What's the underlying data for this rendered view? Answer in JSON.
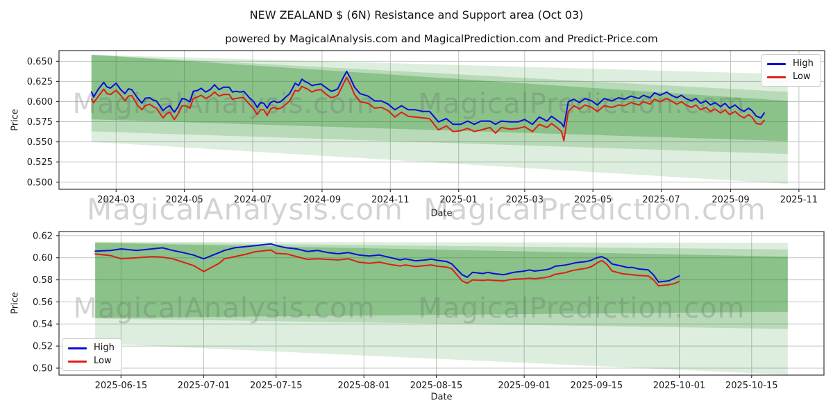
{
  "title": "NEW ZEALAND $ (6N) Resistance and Support area (Oct 03)",
  "subtitle": "powered by MagicalAnalysis.com and MagicalPrediction.com and Predict-Price.com",
  "watermarks": {
    "left": "MagicalAnalysis.com",
    "right": "MagicalPrediction.com"
  },
  "legend": {
    "high_label": "High",
    "low_label": "Low"
  },
  "colors": {
    "high": "#0d0dd6",
    "low": "#e01d14",
    "band": "#228B22",
    "grid": "#c2c2c2",
    "spine": "#333333",
    "tick_text": "#1a1a1a",
    "watermark_fill": "rgba(110,110,110,0.30)"
  },
  "chart_data": [
    {
      "type": "line",
      "ylabel": "Price",
      "xlabel": "Date",
      "grid": true,
      "legend_pos": "upper-right",
      "ylim": [
        0.4912,
        0.6632
      ],
      "x_domain": [
        "2024-01-10",
        "2025-11-24"
      ],
      "yticks": [
        {
          "v": 0.65,
          "label": "0.650"
        },
        {
          "v": 0.625,
          "label": "0.625"
        },
        {
          "v": 0.6,
          "label": "0.600"
        },
        {
          "v": 0.575,
          "label": "0.575"
        },
        {
          "v": 0.55,
          "label": "0.550"
        },
        {
          "v": 0.525,
          "label": "0.525"
        },
        {
          "v": 0.5,
          "label": "0.500"
        }
      ],
      "xticks": [
        {
          "d": "2024-03-01",
          "label": "2024-03"
        },
        {
          "d": "2024-05-01",
          "label": "2024-05"
        },
        {
          "d": "2024-07-01",
          "label": "2024-07"
        },
        {
          "d": "2024-09-01",
          "label": "2024-09"
        },
        {
          "d": "2024-11-01",
          "label": "2024-11"
        },
        {
          "d": "2025-01-01",
          "label": "2025-01"
        },
        {
          "d": "2025-03-01",
          "label": "2025-03"
        },
        {
          "d": "2025-05-01",
          "label": "2025-05"
        },
        {
          "d": "2025-07-01",
          "label": "2025-07"
        },
        {
          "d": "2025-09-01",
          "label": "2025-09"
        },
        {
          "d": "2025-11-01",
          "label": "2025-11"
        }
      ],
      "bands": [
        {
          "x": [
            "2024-02-08",
            "2025-10-22"
          ],
          "top": [
            0.658,
            0.634
          ],
          "bottom": [
            0.55,
            0.498
          ],
          "opacity": 0.15
        },
        {
          "x": [
            "2024-02-08",
            "2025-10-22"
          ],
          "top": [
            0.658,
            0.612
          ],
          "bottom": [
            0.563,
            0.535
          ],
          "opacity": 0.2
        },
        {
          "x": [
            "2024-02-08",
            "2025-10-22"
          ],
          "top": [
            0.658,
            0.601
          ],
          "bottom": [
            0.578,
            0.551
          ],
          "opacity": 0.3
        }
      ],
      "dates": [
        "2024-02-08",
        "2024-02-10",
        "2024-02-14",
        "2024-02-19",
        "2024-02-22",
        "2024-02-25",
        "2024-03-01",
        "2024-03-05",
        "2024-03-09",
        "2024-03-12",
        "2024-03-15",
        "2024-03-20",
        "2024-03-24",
        "2024-03-27",
        "2024-03-31",
        "2024-04-03",
        "2024-04-06",
        "2024-04-09",
        "2024-04-12",
        "2024-04-15",
        "2024-04-18",
        "2024-04-22",
        "2024-04-25",
        "2024-04-29",
        "2024-05-02",
        "2024-05-06",
        "2024-05-09",
        "2024-05-13",
        "2024-05-16",
        "2024-05-20",
        "2024-05-24",
        "2024-05-28",
        "2024-06-01",
        "2024-06-05",
        "2024-06-10",
        "2024-06-13",
        "2024-06-16",
        "2024-06-20",
        "2024-06-23",
        "2024-06-28",
        "2024-07-02",
        "2024-07-05",
        "2024-07-08",
        "2024-07-11",
        "2024-07-14",
        "2024-07-17",
        "2024-07-20",
        "2024-07-23",
        "2024-07-26",
        "2024-07-30",
        "2024-08-03",
        "2024-08-08",
        "2024-08-11",
        "2024-08-14",
        "2024-08-17",
        "2024-08-20",
        "2024-08-23",
        "2024-08-26",
        "2024-08-31",
        "2024-09-04",
        "2024-09-09",
        "2024-09-12",
        "2024-09-15",
        "2024-09-20",
        "2024-09-23",
        "2024-09-26",
        "2024-09-30",
        "2024-10-05",
        "2024-10-12",
        "2024-10-18",
        "2024-10-24",
        "2024-10-30",
        "2024-11-05",
        "2024-11-11",
        "2024-11-17",
        "2024-11-23",
        "2024-11-30",
        "2024-12-06",
        "2024-12-14",
        "2024-12-21",
        "2024-12-27",
        "2025-01-03",
        "2025-01-09",
        "2025-01-15",
        "2025-01-21",
        "2025-01-29",
        "2025-02-03",
        "2025-02-08",
        "2025-02-16",
        "2025-02-23",
        "2025-03-01",
        "2025-03-08",
        "2025-03-14",
        "2025-03-21",
        "2025-03-25",
        "2025-03-29",
        "2025-04-03",
        "2025-04-05",
        "2025-04-09",
        "2025-04-14",
        "2025-04-19",
        "2025-04-24",
        "2025-04-30",
        "2025-05-05",
        "2025-05-11",
        "2025-05-18",
        "2025-05-24",
        "2025-05-29",
        "2025-06-04",
        "2025-06-11",
        "2025-06-15",
        "2025-06-21",
        "2025-06-25",
        "2025-06-30",
        "2025-07-06",
        "2025-07-10",
        "2025-07-15",
        "2025-07-19",
        "2025-07-23",
        "2025-07-28",
        "2025-08-01",
        "2025-08-05",
        "2025-08-10",
        "2025-08-14",
        "2025-08-18",
        "2025-08-23",
        "2025-08-27",
        "2025-08-31",
        "2025-09-05",
        "2025-09-09",
        "2025-09-13",
        "2025-09-17",
        "2025-09-20",
        "2025-09-24",
        "2025-09-28",
        "2025-10-01"
      ],
      "series": [
        {
          "name": "High",
          "color_key": "high",
          "values": [
            0.612,
            0.6058,
            0.615,
            0.6238,
            0.618,
            0.6168,
            0.6228,
            0.615,
            0.6098,
            0.6158,
            0.6148,
            0.6048,
            0.598,
            0.604,
            0.6048,
            0.6018,
            0.6008,
            0.5948,
            0.5888,
            0.5928,
            0.5948,
            0.5868,
            0.5928,
            0.6038,
            0.6028,
            0.5998,
            0.6128,
            0.6138,
            0.6165,
            0.6118,
            0.6148,
            0.6208,
            0.6148,
            0.6178,
            0.6178,
            0.6118,
            0.6128,
            0.6118,
            0.6128,
            0.6048,
            0.5998,
            0.5928,
            0.5988,
            0.5978,
            0.5918,
            0.5988,
            0.6008,
            0.5988,
            0.5998,
            0.6048,
            0.6098,
            0.6228,
            0.6198,
            0.6278,
            0.6248,
            0.6228,
            0.6198,
            0.6208,
            0.6218,
            0.6178,
            0.6128,
            0.6138,
            0.6158,
            0.6298,
            0.6375,
            0.6298,
            0.6178,
            0.6098,
            0.6068,
            0.6008,
            0.6008,
            0.5968,
            0.5898,
            0.5948,
            0.5898,
            0.5898,
            0.5878,
            0.5878,
            0.5748,
            0.5788,
            0.5718,
            0.5718,
            0.5758,
            0.5718,
            0.5758,
            0.5758,
            0.5718,
            0.5758,
            0.5748,
            0.5748,
            0.5778,
            0.5718,
            0.5808,
            0.5758,
            0.5818,
            0.5778,
            0.5728,
            0.5685,
            0.5998,
            0.6028,
            0.5988,
            0.6038,
            0.6008,
            0.5958,
            0.6038,
            0.6008,
            0.6048,
            0.6028,
            0.6068,
            0.6038,
            0.6078,
            0.6048,
            0.6108,
            0.6078,
            0.6118,
            0.6078,
            0.6048,
            0.6078,
            0.6038,
            0.6008,
            0.6038,
            0.5978,
            0.6008,
            0.5958,
            0.5988,
            0.5938,
            0.5978,
            0.5918,
            0.5958,
            0.5908,
            0.5878,
            0.5918,
            0.5888,
            0.5818,
            0.5798,
            0.5858
          ]
        },
        {
          "name": "Low",
          "color_key": "low",
          "values": [
            0.603,
            0.5985,
            0.6062,
            0.6155,
            0.6098,
            0.6088,
            0.614,
            0.608,
            0.6008,
            0.6068,
            0.6075,
            0.5958,
            0.5898,
            0.5948,
            0.5968,
            0.5938,
            0.5918,
            0.5858,
            0.5798,
            0.5848,
            0.5868,
            0.5778,
            0.5838,
            0.5948,
            0.5948,
            0.5918,
            0.6038,
            0.6058,
            0.6078,
            0.6038,
            0.6068,
            0.6118,
            0.6068,
            0.6088,
            0.6088,
            0.6028,
            0.6038,
            0.6048,
            0.6048,
            0.5968,
            0.5908,
            0.5838,
            0.5898,
            0.5898,
            0.5828,
            0.5908,
            0.5928,
            0.5908,
            0.5918,
            0.5958,
            0.6008,
            0.6138,
            0.6128,
            0.6188,
            0.6168,
            0.6148,
            0.6118,
            0.6138,
            0.6148,
            0.6098,
            0.6048,
            0.6058,
            0.6078,
            0.6218,
            0.6298,
            0.6218,
            0.6088,
            0.5998,
            0.5978,
            0.5918,
            0.5928,
            0.5888,
            0.5808,
            0.5868,
            0.5818,
            0.5808,
            0.5798,
            0.5788,
            0.5648,
            0.5698,
            0.5628,
            0.5638,
            0.5668,
            0.5628,
            0.5648,
            0.5678,
            0.5608,
            0.5678,
            0.5658,
            0.5668,
            0.5688,
            0.5628,
            0.5718,
            0.5678,
            0.5728,
            0.5688,
            0.5628,
            0.5515,
            0.5878,
            0.5948,
            0.5908,
            0.5958,
            0.5928,
            0.5878,
            0.5948,
            0.5928,
            0.5958,
            0.5948,
            0.5988,
            0.5958,
            0.5998,
            0.5968,
            0.6028,
            0.5998,
            0.6038,
            0.6008,
            0.5968,
            0.5998,
            0.5958,
            0.5928,
            0.5958,
            0.5898,
            0.5928,
            0.5878,
            0.5908,
            0.5858,
            0.5898,
            0.5838,
            0.5878,
            0.5828,
            0.5798,
            0.5838,
            0.5808,
            0.5728,
            0.5718,
            0.5768
          ]
        }
      ]
    },
    {
      "type": "line",
      "ylabel": "Price",
      "xlabel": "Date",
      "grid": true,
      "legend_pos": "lower-left",
      "ylim": [
        0.4937,
        0.6237
      ],
      "x_domain": [
        "2025-06-03",
        "2025-10-29"
      ],
      "yticks": [
        {
          "v": 0.62,
          "label": "0.62"
        },
        {
          "v": 0.6,
          "label": "0.60"
        },
        {
          "v": 0.58,
          "label": "0.58"
        },
        {
          "v": 0.56,
          "label": "0.56"
        },
        {
          "v": 0.54,
          "label": "0.54"
        },
        {
          "v": 0.52,
          "label": "0.52"
        },
        {
          "v": 0.5,
          "label": "0.50"
        }
      ],
      "xticks": [
        {
          "d": "2025-06-15",
          "label": "2025-06-15"
        },
        {
          "d": "2025-07-01",
          "label": "2025-07-01"
        },
        {
          "d": "2025-07-15",
          "label": "2025-07-15"
        },
        {
          "d": "2025-08-01",
          "label": "2025-08-01"
        },
        {
          "d": "2025-08-15",
          "label": "2025-08-15"
        },
        {
          "d": "2025-09-01",
          "label": "2025-09-01"
        },
        {
          "d": "2025-09-15",
          "label": "2025-09-15"
        },
        {
          "d": "2025-10-01",
          "label": "2025-10-01"
        },
        {
          "d": "2025-10-15",
          "label": "2025-10-15"
        }
      ],
      "bands": [
        {
          "x": [
            "2025-06-10",
            "2025-10-22"
          ],
          "top": [
            0.6145,
            0.6135
          ],
          "bottom": [
            0.5225,
            0.494
          ],
          "opacity": 0.15
        },
        {
          "x": [
            "2025-06-10",
            "2025-10-22"
          ],
          "top": [
            0.614,
            0.6075
          ],
          "bottom": [
            0.545,
            0.5355
          ],
          "opacity": 0.2
        },
        {
          "x": [
            "2025-06-10",
            "2025-10-22"
          ],
          "top": [
            0.6135,
            0.601
          ],
          "bottom": [
            0.5455,
            0.551
          ],
          "opacity": 0.3
        }
      ],
      "dates": [
        "2025-06-10",
        "2025-06-13",
        "2025-06-15",
        "2025-06-18",
        "2025-06-21",
        "2025-06-23",
        "2025-06-25",
        "2025-06-27",
        "2025-06-29",
        "2025-07-01",
        "2025-07-04",
        "2025-07-05",
        "2025-07-07",
        "2025-07-09",
        "2025-07-11",
        "2025-07-14",
        "2025-07-15",
        "2025-07-17",
        "2025-07-19",
        "2025-07-21",
        "2025-07-23",
        "2025-07-25",
        "2025-07-27",
        "2025-07-29",
        "2025-07-31",
        "2025-08-02",
        "2025-08-04",
        "2025-08-06",
        "2025-08-08",
        "2025-08-09",
        "2025-08-11",
        "2025-08-13",
        "2025-08-14",
        "2025-08-15",
        "2025-08-17",
        "2025-08-18",
        "2025-08-20",
        "2025-08-21",
        "2025-08-22",
        "2025-08-24",
        "2025-08-25",
        "2025-08-26",
        "2025-08-28",
        "2025-08-29",
        "2025-08-30",
        "2025-09-01",
        "2025-09-02",
        "2025-09-03",
        "2025-09-05",
        "2025-09-06",
        "2025-09-07",
        "2025-09-09",
        "2025-09-10",
        "2025-09-11",
        "2025-09-13",
        "2025-09-14",
        "2025-09-15",
        "2025-09-16",
        "2025-09-17",
        "2025-09-18",
        "2025-09-20",
        "2025-09-21",
        "2025-09-22",
        "2025-09-23",
        "2025-09-25",
        "2025-09-26",
        "2025-09-27",
        "2025-09-29",
        "2025-09-30",
        "2025-10-01"
      ],
      "series": [
        {
          "name": "High",
          "color_key": "high",
          "values": [
            0.606,
            0.6066,
            0.608,
            0.6066,
            0.608,
            0.609,
            0.6066,
            0.6047,
            0.6025,
            0.599,
            0.6047,
            0.6066,
            0.609,
            0.61,
            0.611,
            0.6125,
            0.611,
            0.609,
            0.608,
            0.6057,
            0.6066,
            0.6047,
            0.6036,
            0.6047,
            0.6025,
            0.6015,
            0.6025,
            0.6003,
            0.598,
            0.599,
            0.5972,
            0.598,
            0.5988,
            0.5978,
            0.5966,
            0.5944,
            0.5846,
            0.5824,
            0.5868,
            0.5857,
            0.5868,
            0.5857,
            0.5846,
            0.5857,
            0.5868,
            0.5879,
            0.589,
            0.5879,
            0.589,
            0.59,
            0.5923,
            0.5934,
            0.5944,
            0.5955,
            0.5966,
            0.5977,
            0.5999,
            0.601,
            0.5988,
            0.5944,
            0.5923,
            0.5912,
            0.5912,
            0.59,
            0.589,
            0.5846,
            0.578,
            0.5791,
            0.5813,
            0.5835
          ]
        },
        {
          "name": "Low",
          "color_key": "low",
          "values": [
            0.6035,
            0.602,
            0.599,
            0.6,
            0.601,
            0.6005,
            0.599,
            0.596,
            0.593,
            0.5875,
            0.595,
            0.599,
            0.601,
            0.603,
            0.6055,
            0.607,
            0.604,
            0.6035,
            0.601,
            0.5985,
            0.599,
            0.5985,
            0.598,
            0.599,
            0.596,
            0.595,
            0.596,
            0.594,
            0.5925,
            0.5935,
            0.592,
            0.593,
            0.5935,
            0.5925,
            0.5915,
            0.59,
            0.579,
            0.577,
            0.58,
            0.5795,
            0.58,
            0.5795,
            0.579,
            0.58,
            0.5805,
            0.581,
            0.5815,
            0.581,
            0.582,
            0.583,
            0.585,
            0.5865,
            0.588,
            0.589,
            0.5905,
            0.592,
            0.595,
            0.5975,
            0.594,
            0.588,
            0.5855,
            0.585,
            0.5845,
            0.584,
            0.5835,
            0.58,
            0.5745,
            0.5755,
            0.5765,
            0.5785
          ]
        }
      ]
    }
  ]
}
